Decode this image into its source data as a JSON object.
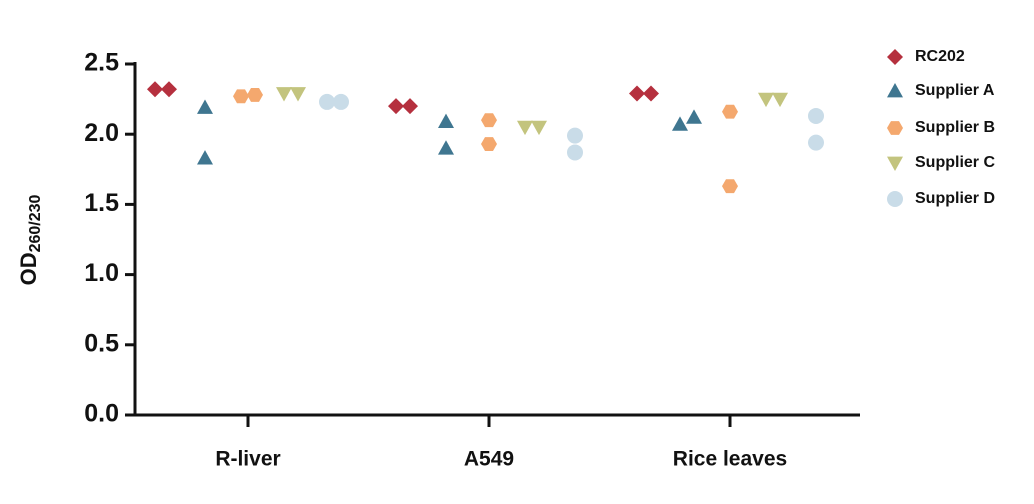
{
  "chart_data": {
    "type": "scatter",
    "ylabel": "OD",
    "ylabel_sub": "260/230",
    "categories": [
      "R-liver",
      "A549",
      "Rice leaves"
    ],
    "ylim": [
      0,
      2.5
    ],
    "yticks": [
      {
        "value": 0,
        "label": "0.0"
      },
      {
        "value": 0.5,
        "label": "0.5"
      },
      {
        "value": 1,
        "label": "1.0"
      },
      {
        "value": 1.5,
        "label": "1.5"
      },
      {
        "value": 2,
        "label": "2.0"
      },
      {
        "value": 2.5,
        "label": "2.5"
      }
    ],
    "legend": "right",
    "series": [
      {
        "name": "RC202",
        "color": "#b5303e",
        "marker": "diamond",
        "values": [
          [
            2.32,
            2.32
          ],
          [
            2.2,
            2.2
          ],
          [
            2.29,
            2.29
          ]
        ]
      },
      {
        "name": "Supplier A",
        "color": "#3f7690",
        "marker": "triangle",
        "values": [
          [
            2.19,
            1.83
          ],
          [
            2.09,
            1.9
          ],
          [
            2.07,
            2.12
          ]
        ]
      },
      {
        "name": "Supplier B",
        "color": "#f4a86e",
        "marker": "hexagon",
        "values": [
          [
            2.27,
            2.28
          ],
          [
            2.1,
            1.93
          ],
          [
            2.16,
            1.63
          ]
        ]
      },
      {
        "name": "Supplier C",
        "color": "#c3c47e",
        "marker": "triangle-down",
        "values": [
          [
            2.29,
            2.29
          ],
          [
            2.05,
            2.05
          ],
          [
            2.25,
            2.25
          ]
        ]
      },
      {
        "name": "Supplier D",
        "color": "#c9dce8",
        "marker": "circle",
        "values": [
          [
            2.23,
            2.23
          ],
          [
            1.99,
            1.87
          ],
          [
            2.13,
            1.94
          ]
        ]
      }
    ]
  }
}
